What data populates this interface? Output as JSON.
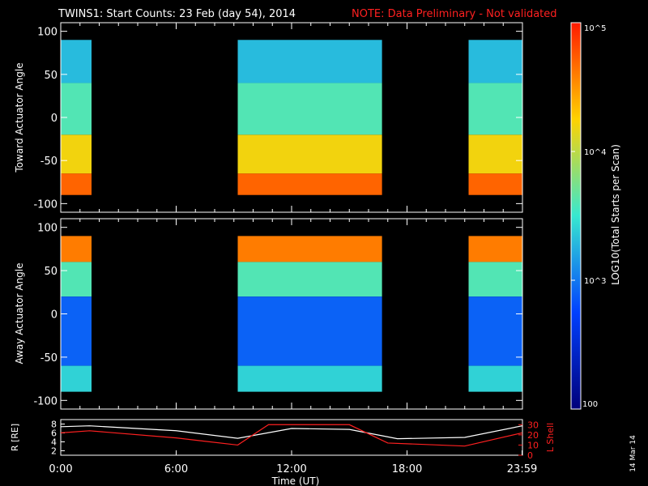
{
  "header": {
    "title": "TWINS1: Start Counts: 23 Feb (day  54), 2014",
    "note": "NOTE: Data Preliminary - Not validated"
  },
  "panels": [
    {
      "ylabel": "Toward Actuator Angle",
      "ytick_labels": [
        "100",
        "50",
        "0",
        "-50",
        "-100"
      ]
    },
    {
      "ylabel": "Away Actuator Angle",
      "ytick_labels": [
        "100",
        "50",
        "0",
        "-50",
        "-100"
      ]
    }
  ],
  "colorbar": {
    "label": "LOG10(Total Starts per Scan)",
    "tick_labels": [
      "10^5",
      "10^4",
      "10^3",
      "100"
    ],
    "colors": [
      "#ff1a00",
      "#ffd200",
      "#37e8d0",
      "#0040ff",
      "#00007a"
    ]
  },
  "orbit": {
    "left_label": "R [RE]",
    "right_label": "L Shell",
    "left_ticks": [
      "8",
      "6",
      "4",
      "2"
    ],
    "right_ticks": [
      "30",
      "20",
      "10",
      "0"
    ]
  },
  "xaxis": {
    "label": "Time (UT)",
    "tick_labels": [
      "0:00",
      "6:00",
      "12:00",
      "18:00",
      "23:59"
    ]
  },
  "date_stamp": "14 Mar 14",
  "chart_data": {
    "type": "heatmap",
    "title": "TWINS1: Start Counts: 23 Feb (day  54), 2014",
    "xlabel": "Time (UT)",
    "xlim": [
      0,
      24
    ],
    "colorbar": {
      "scale": "log",
      "range": [
        100,
        100000
      ]
    },
    "data_windows_hours": [
      [
        0,
        1.6
      ],
      [
        9.2,
        16.7
      ],
      [
        21.2,
        24
      ]
    ],
    "panels": [
      {
        "ylabel": "Toward Actuator Angle",
        "ylim": [
          -110,
          110
        ],
        "angle_range": [
          -90,
          90
        ],
        "bands": [
          {
            "angle": [
              -90,
              -65
            ],
            "log10_counts": 4.7
          },
          {
            "angle": [
              -65,
              -20
            ],
            "log10_counts": 4.2
          },
          {
            "angle": [
              -20,
              40
            ],
            "log10_counts": 3.6
          },
          {
            "angle": [
              40,
              90
            ],
            "log10_counts": 3.3
          }
        ]
      },
      {
        "ylabel": "Away Actuator Angle",
        "ylim": [
          -110,
          110
        ],
        "angle_range": [
          -90,
          90
        ],
        "bands": [
          {
            "angle": [
              60,
              90
            ],
            "log10_counts": 4.6
          },
          {
            "angle": [
              20,
              60
            ],
            "log10_counts": 3.6
          },
          {
            "angle": [
              -60,
              20
            ],
            "log10_counts": 2.9
          },
          {
            "angle": [
              -90,
              -60
            ],
            "log10_counts": 3.4
          }
        ]
      }
    ],
    "series": [
      {
        "name": "R [RE]",
        "x": [
          0,
          1.5,
          6,
          9.2,
          12,
          15,
          17.5,
          21,
          23.99
        ],
        "y": [
          7.4,
          7.6,
          6.5,
          4.8,
          7.0,
          6.8,
          4.7,
          5.0,
          7.6
        ]
      },
      {
        "name": "L Shell",
        "x": [
          0,
          1.5,
          6,
          9.2,
          10.8,
          15,
          17,
          21,
          23.99
        ],
        "y": [
          22,
          24,
          17,
          10,
          30,
          30,
          12,
          9,
          22
        ]
      }
    ]
  }
}
